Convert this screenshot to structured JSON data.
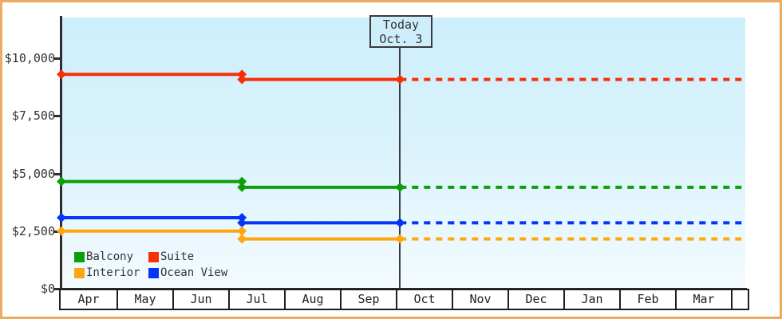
{
  "window": {
    "frame_color": "#edaa62",
    "background": "#ffffff"
  },
  "chart_data": {
    "type": "line",
    "title": "",
    "y_axis": {
      "tick_values": [
        0,
        2500,
        5000,
        7500,
        10000
      ],
      "tick_labels": [
        "$0",
        "$2,500",
        "$5,000",
        "$7,500",
        "$10,000"
      ],
      "ylim": [
        0,
        11700
      ]
    },
    "x_axis": {
      "months": [
        "Apr",
        "May",
        "Jun",
        "Jul",
        "Aug",
        "Sep",
        "Oct",
        "Nov",
        "Dec",
        "Jan",
        "Feb",
        "Mar"
      ]
    },
    "today_marker": {
      "line1": "Today",
      "line2": "Oct. 3",
      "month_frac": 6.09
    },
    "price_change_month_frac": 3.26,
    "series": [
      {
        "name": "Suite",
        "color": "#f73008",
        "initial_price": 9300,
        "current_price": 9080
      },
      {
        "name": "Balcony",
        "color": "#0aa00a",
        "initial_price": 4650,
        "current_price": 4400
      },
      {
        "name": "Ocean View",
        "color": "#0535f5",
        "initial_price": 3080,
        "current_price": 2860
      },
      {
        "name": "Interior",
        "color": "#ffa60d",
        "initial_price": 2500,
        "current_price": 2160
      }
    ],
    "line_style": {
      "solid_before_today": true,
      "dotted_after_today": true,
      "marker": "diamond"
    },
    "legend": {
      "rows": [
        [
          "Balcony",
          "Suite"
        ],
        [
          "Interior",
          "Ocean View"
        ]
      ]
    }
  }
}
